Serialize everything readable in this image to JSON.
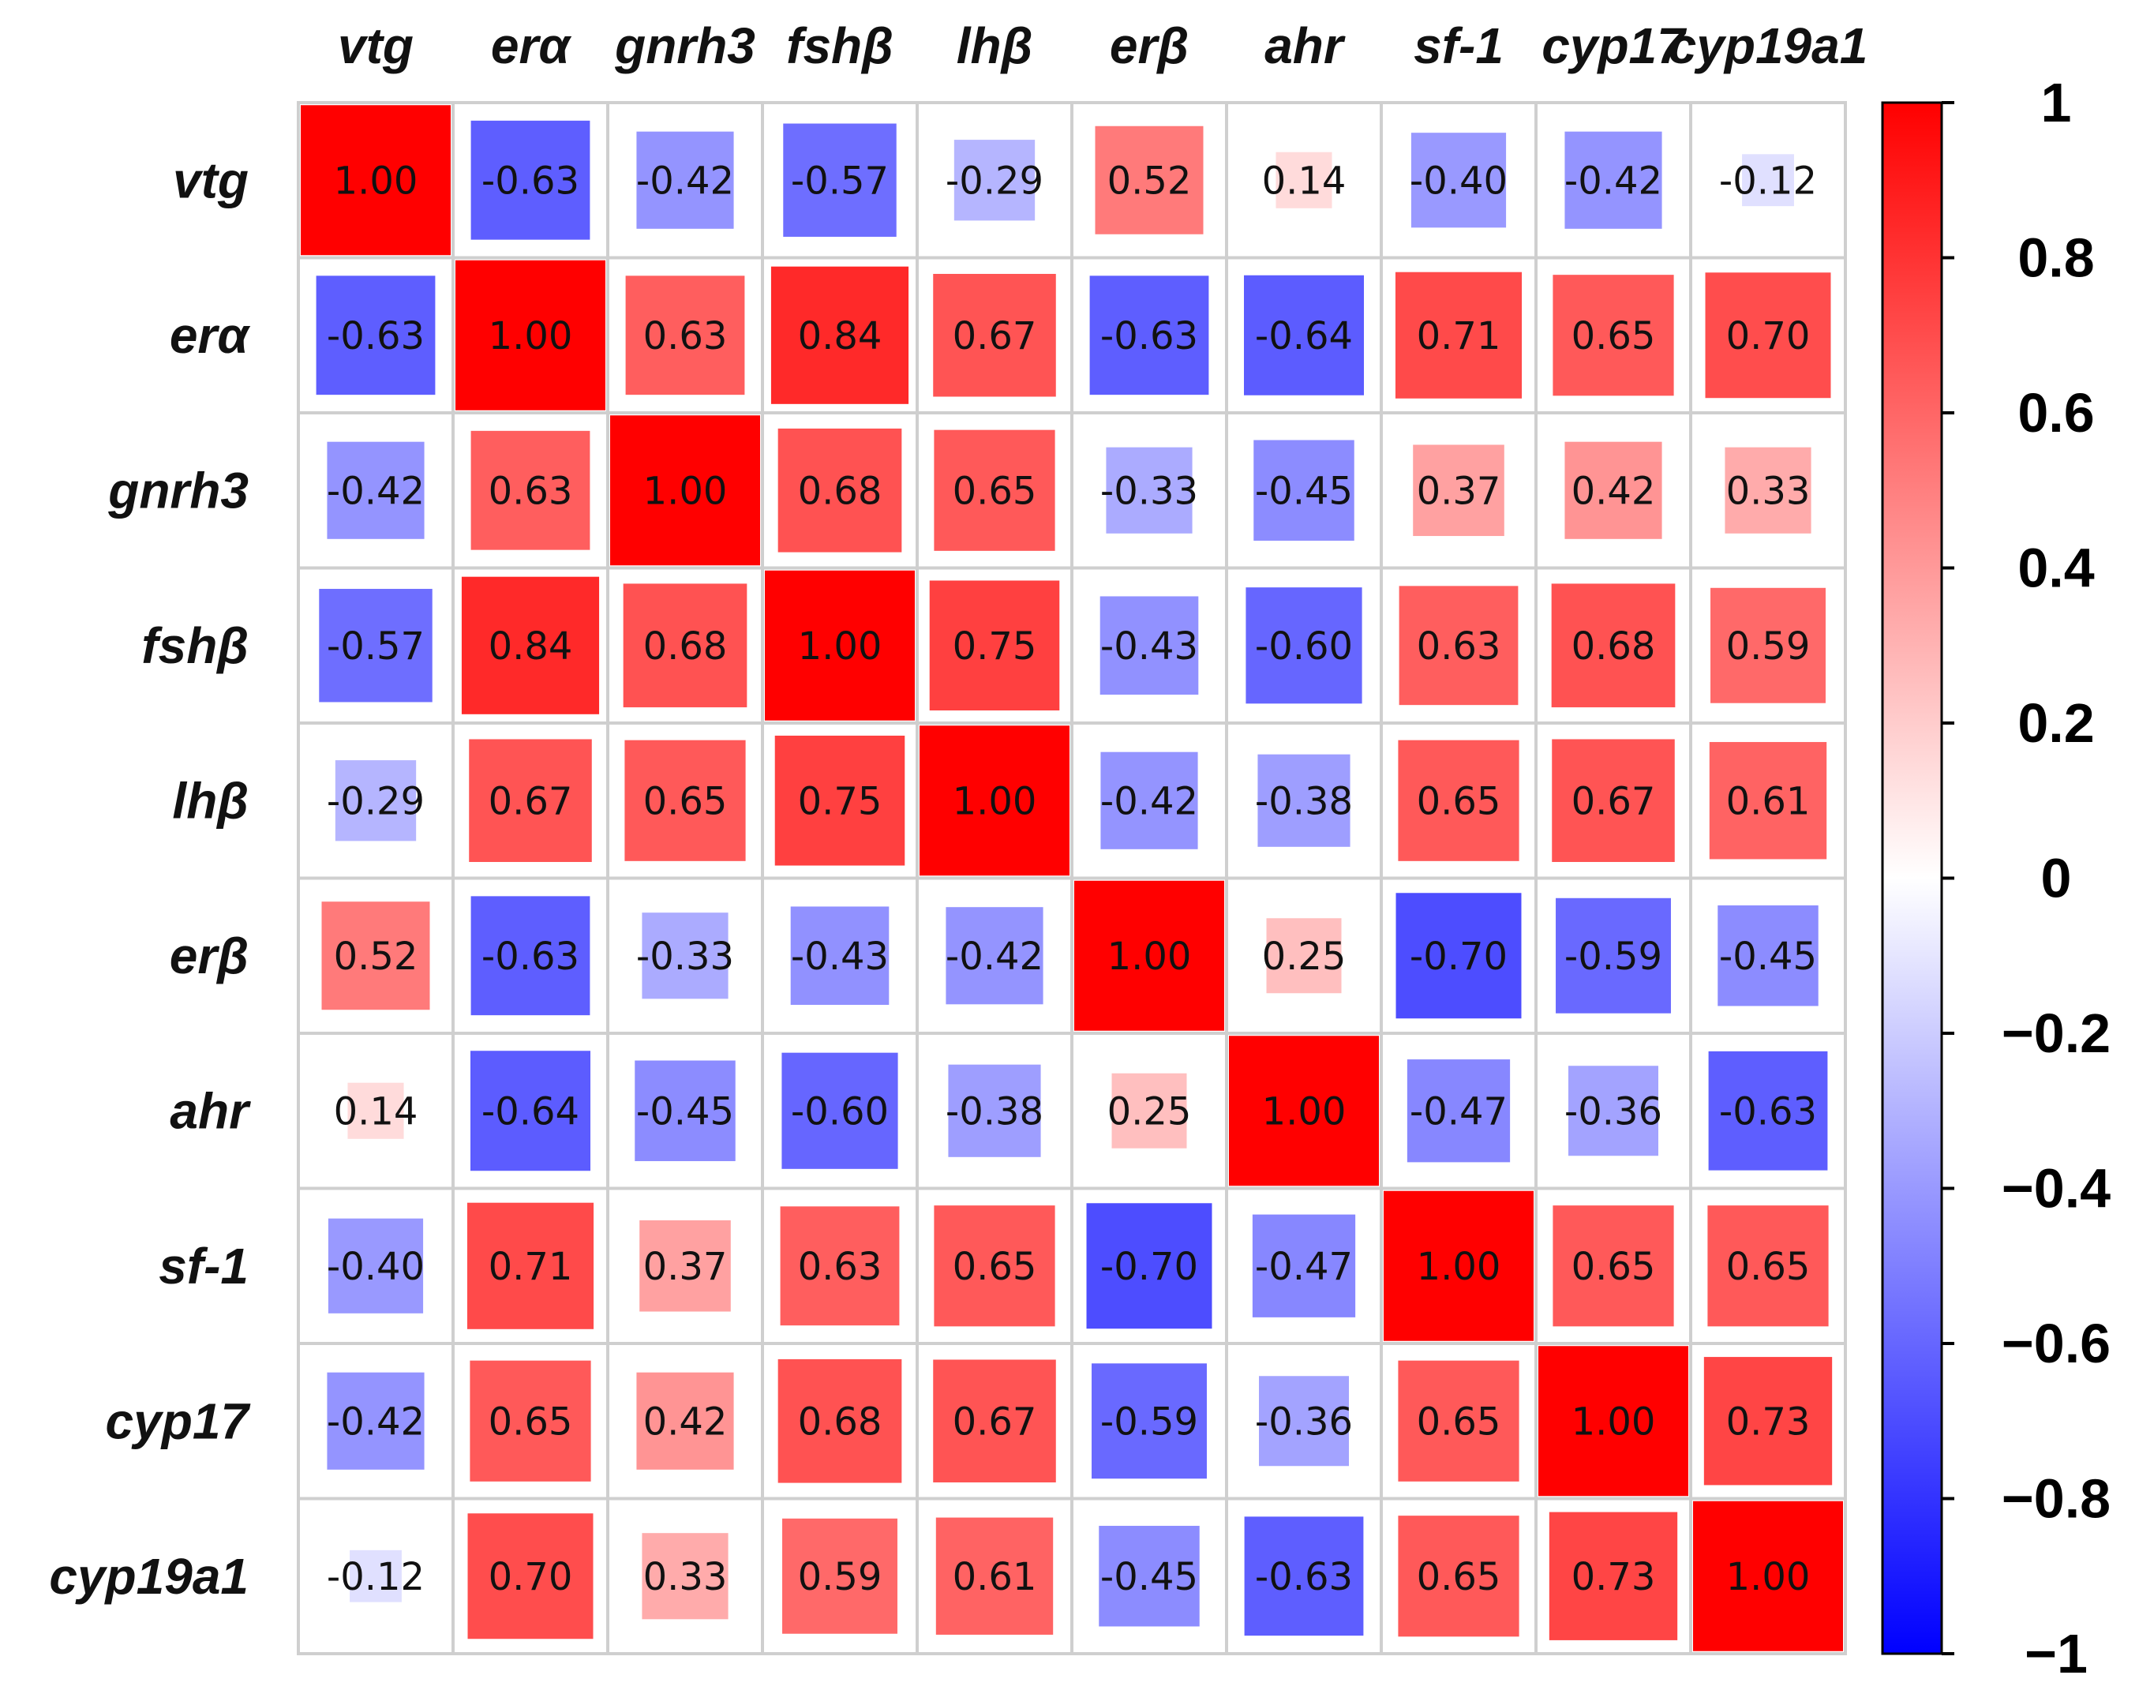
{
  "chart_data": {
    "type": "heatmap",
    "variables": [
      "vtg",
      "erα",
      "gnrh3",
      "fshβ",
      "lhβ",
      "erβ",
      "ahr",
      "sf-1",
      "cyp17",
      "cyp19a1"
    ],
    "matrix": [
      [
        1.0,
        -0.63,
        -0.42,
        -0.57,
        -0.29,
        0.52,
        0.14,
        -0.4,
        -0.42,
        -0.12
      ],
      [
        -0.63,
        1.0,
        0.63,
        0.84,
        0.67,
        -0.63,
        -0.64,
        0.71,
        0.65,
        0.7
      ],
      [
        -0.42,
        0.63,
        1.0,
        0.68,
        0.65,
        -0.33,
        -0.45,
        0.37,
        0.42,
        0.33
      ],
      [
        -0.57,
        0.84,
        0.68,
        1.0,
        0.75,
        -0.43,
        -0.6,
        0.63,
        0.68,
        0.59
      ],
      [
        -0.29,
        0.67,
        0.65,
        0.75,
        1.0,
        -0.42,
        -0.38,
        0.65,
        0.67,
        0.61
      ],
      [
        0.52,
        -0.63,
        -0.33,
        -0.43,
        -0.42,
        1.0,
        0.25,
        -0.7,
        -0.59,
        -0.45
      ],
      [
        0.14,
        -0.64,
        -0.45,
        -0.6,
        -0.38,
        0.25,
        1.0,
        -0.47,
        -0.36,
        -0.63
      ],
      [
        -0.4,
        0.71,
        0.37,
        0.63,
        0.65,
        -0.7,
        -0.47,
        1.0,
        0.65,
        0.65
      ],
      [
        -0.42,
        0.65,
        0.42,
        0.68,
        0.67,
        -0.59,
        -0.36,
        0.65,
        1.0,
        0.73
      ],
      [
        -0.12,
        0.7,
        0.33,
        0.59,
        0.61,
        -0.45,
        -0.63,
        0.65,
        0.73,
        1.0
      ]
    ],
    "value_format": "2 decimals",
    "color_scale": {
      "range": [
        -1,
        1
      ],
      "low_color": "#0000ff",
      "mid_color": "#ffffff",
      "high_color": "#ff0000"
    },
    "colorbar": {
      "position": "right",
      "tick_labels": [
        "1",
        "0.8",
        "0.6",
        "0.4",
        "0.2",
        "0",
        "−0.2",
        "−0.4",
        "−0.6",
        "−0.8",
        "−1"
      ]
    },
    "grid": true,
    "cell_size_encodes_magnitude": true
  }
}
